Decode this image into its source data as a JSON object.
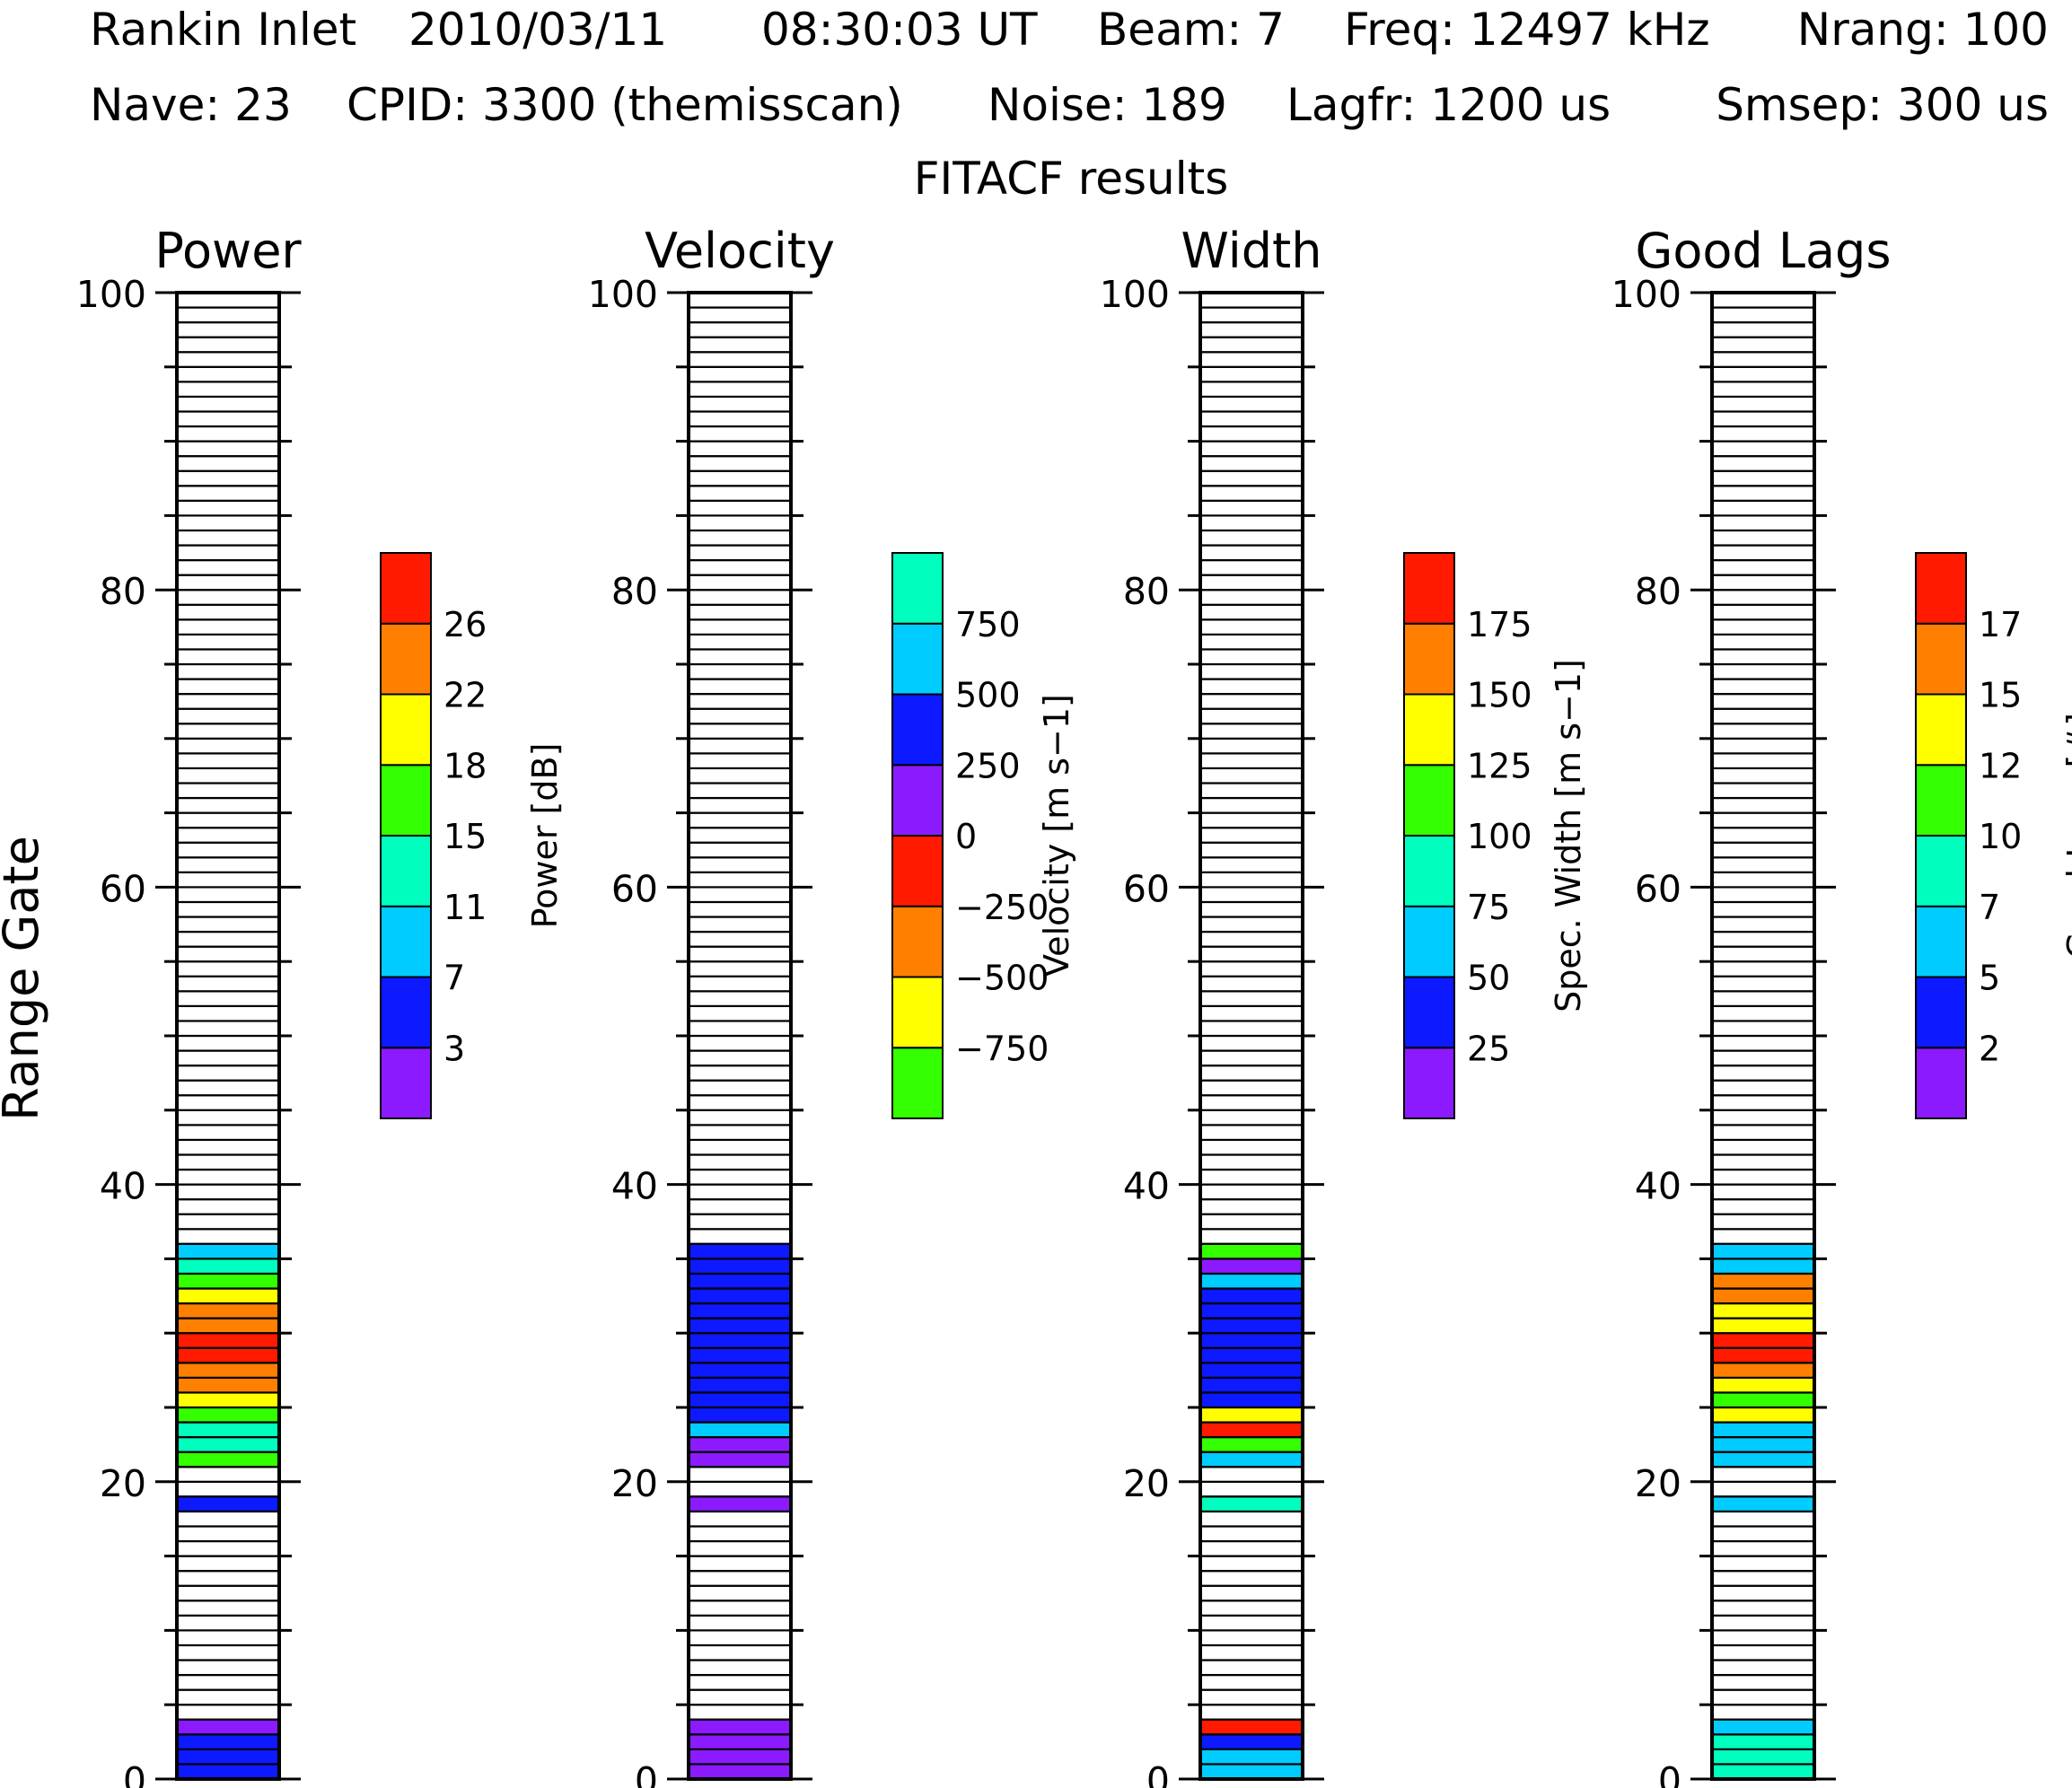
{
  "header": {
    "line1": {
      "station": "Rankin Inlet",
      "date": "2010/03/11",
      "time": "08:30:03 UT",
      "beam": "Beam: 7",
      "freq": "Freq: 12497 kHz",
      "nrang": "Nrang: 100"
    },
    "line2": {
      "nave": "Nave: 23",
      "cpid": "CPID: 3300 (themisscan)",
      "noise": "Noise: 189",
      "lagfr": "Lagfr: 1200 us",
      "smsep": "Smsep: 300 us"
    },
    "subtitle": "FITACF results"
  },
  "colors": {
    "purple": "#8c1aff",
    "blue": "#0d19ff",
    "cyan": "#00ccff",
    "teal": "#00ffbf",
    "green": "#33ff00",
    "yellow": "#ffff00",
    "orange": "#ff8000",
    "red": "#ff1a00"
  },
  "chart_data": {
    "type": "heatmap",
    "ylabel": "Range Gate",
    "yticks": [
      "0",
      "20",
      "40",
      "60",
      "80",
      "100"
    ],
    "ylim": [
      0,
      100
    ],
    "panels": [
      {
        "title": "Power",
        "colorbar": {
          "label": "Power",
          "unit": "[dB]",
          "colors": [
            "purple",
            "blue",
            "cyan",
            "teal",
            "green",
            "yellow",
            "orange",
            "red"
          ],
          "ticks": [
            "3",
            "7",
            "11",
            "15",
            "18",
            "22",
            "26"
          ]
        },
        "gates": [
          {
            "gate": 0,
            "color": "blue"
          },
          {
            "gate": 1,
            "color": "blue"
          },
          {
            "gate": 2,
            "color": "blue"
          },
          {
            "gate": 3,
            "color": "purple"
          },
          {
            "gate": 18,
            "color": "blue"
          },
          {
            "gate": 21,
            "color": "green"
          },
          {
            "gate": 22,
            "color": "teal"
          },
          {
            "gate": 23,
            "color": "teal"
          },
          {
            "gate": 24,
            "color": "green"
          },
          {
            "gate": 25,
            "color": "yellow"
          },
          {
            "gate": 26,
            "color": "orange"
          },
          {
            "gate": 27,
            "color": "orange"
          },
          {
            "gate": 28,
            "color": "red"
          },
          {
            "gate": 29,
            "color": "red"
          },
          {
            "gate": 30,
            "color": "orange"
          },
          {
            "gate": 31,
            "color": "orange"
          },
          {
            "gate": 32,
            "color": "yellow"
          },
          {
            "gate": 33,
            "color": "green"
          },
          {
            "gate": 34,
            "color": "teal"
          },
          {
            "gate": 35,
            "color": "cyan"
          }
        ]
      },
      {
        "title": "Velocity",
        "colorbar": {
          "label": "Velocity",
          "unit": "[m s−1]",
          "colors": [
            "green",
            "yellow",
            "orange",
            "red",
            "purple",
            "blue",
            "cyan",
            "teal"
          ],
          "ticks": [
            "−750",
            "−500",
            "−250",
            "0",
            "250",
            "500",
            "750"
          ]
        },
        "gates": [
          {
            "gate": 0,
            "color": "purple"
          },
          {
            "gate": 1,
            "color": "purple"
          },
          {
            "gate": 2,
            "color": "purple"
          },
          {
            "gate": 3,
            "color": "purple"
          },
          {
            "gate": 18,
            "color": "purple"
          },
          {
            "gate": 21,
            "color": "purple"
          },
          {
            "gate": 22,
            "color": "purple"
          },
          {
            "gate": 23,
            "color": "cyan"
          },
          {
            "gate": 24,
            "color": "blue"
          },
          {
            "gate": 25,
            "color": "blue"
          },
          {
            "gate": 26,
            "color": "blue"
          },
          {
            "gate": 27,
            "color": "blue"
          },
          {
            "gate": 28,
            "color": "blue"
          },
          {
            "gate": 29,
            "color": "blue"
          },
          {
            "gate": 30,
            "color": "blue"
          },
          {
            "gate": 31,
            "color": "blue"
          },
          {
            "gate": 32,
            "color": "blue"
          },
          {
            "gate": 33,
            "color": "blue"
          },
          {
            "gate": 34,
            "color": "blue"
          },
          {
            "gate": 35,
            "color": "blue"
          }
        ]
      },
      {
        "title": "Width",
        "colorbar": {
          "label": "Spec. Width",
          "unit": "[m s−1]",
          "colors": [
            "purple",
            "blue",
            "cyan",
            "teal",
            "green",
            "yellow",
            "orange",
            "red"
          ],
          "ticks": [
            "25",
            "50",
            "75",
            "100",
            "125",
            "150",
            "175"
          ]
        },
        "gates": [
          {
            "gate": 0,
            "color": "cyan"
          },
          {
            "gate": 1,
            "color": "cyan"
          },
          {
            "gate": 2,
            "color": "blue"
          },
          {
            "gate": 3,
            "color": "red"
          },
          {
            "gate": 18,
            "color": "teal"
          },
          {
            "gate": 21,
            "color": "cyan"
          },
          {
            "gate": 22,
            "color": "green"
          },
          {
            "gate": 23,
            "color": "red"
          },
          {
            "gate": 24,
            "color": "yellow"
          },
          {
            "gate": 25,
            "color": "blue"
          },
          {
            "gate": 26,
            "color": "blue"
          },
          {
            "gate": 27,
            "color": "blue"
          },
          {
            "gate": 28,
            "color": "blue"
          },
          {
            "gate": 29,
            "color": "blue"
          },
          {
            "gate": 30,
            "color": "blue"
          },
          {
            "gate": 31,
            "color": "blue"
          },
          {
            "gate": 32,
            "color": "blue"
          },
          {
            "gate": 33,
            "color": "cyan"
          },
          {
            "gate": 34,
            "color": "purple"
          },
          {
            "gate": 35,
            "color": "green"
          }
        ]
      },
      {
        "title": "Good Lags",
        "colorbar": {
          "label": "Good Lags",
          "unit": "[#]",
          "colors": [
            "purple",
            "blue",
            "cyan",
            "teal",
            "green",
            "yellow",
            "orange",
            "red"
          ],
          "ticks": [
            "2",
            "5",
            "7",
            "10",
            "12",
            "15",
            "17"
          ]
        },
        "gates": [
          {
            "gate": 0,
            "color": "teal"
          },
          {
            "gate": 1,
            "color": "teal"
          },
          {
            "gate": 2,
            "color": "teal"
          },
          {
            "gate": 3,
            "color": "cyan"
          },
          {
            "gate": 18,
            "color": "cyan"
          },
          {
            "gate": 21,
            "color": "cyan"
          },
          {
            "gate": 22,
            "color": "cyan"
          },
          {
            "gate": 23,
            "color": "cyan"
          },
          {
            "gate": 24,
            "color": "yellow"
          },
          {
            "gate": 25,
            "color": "green"
          },
          {
            "gate": 26,
            "color": "yellow"
          },
          {
            "gate": 27,
            "color": "orange"
          },
          {
            "gate": 28,
            "color": "red"
          },
          {
            "gate": 29,
            "color": "red"
          },
          {
            "gate": 30,
            "color": "yellow"
          },
          {
            "gate": 31,
            "color": "yellow"
          },
          {
            "gate": 32,
            "color": "orange"
          },
          {
            "gate": 33,
            "color": "orange"
          },
          {
            "gate": 34,
            "color": "cyan"
          },
          {
            "gate": 35,
            "color": "cyan"
          }
        ]
      }
    ]
  }
}
